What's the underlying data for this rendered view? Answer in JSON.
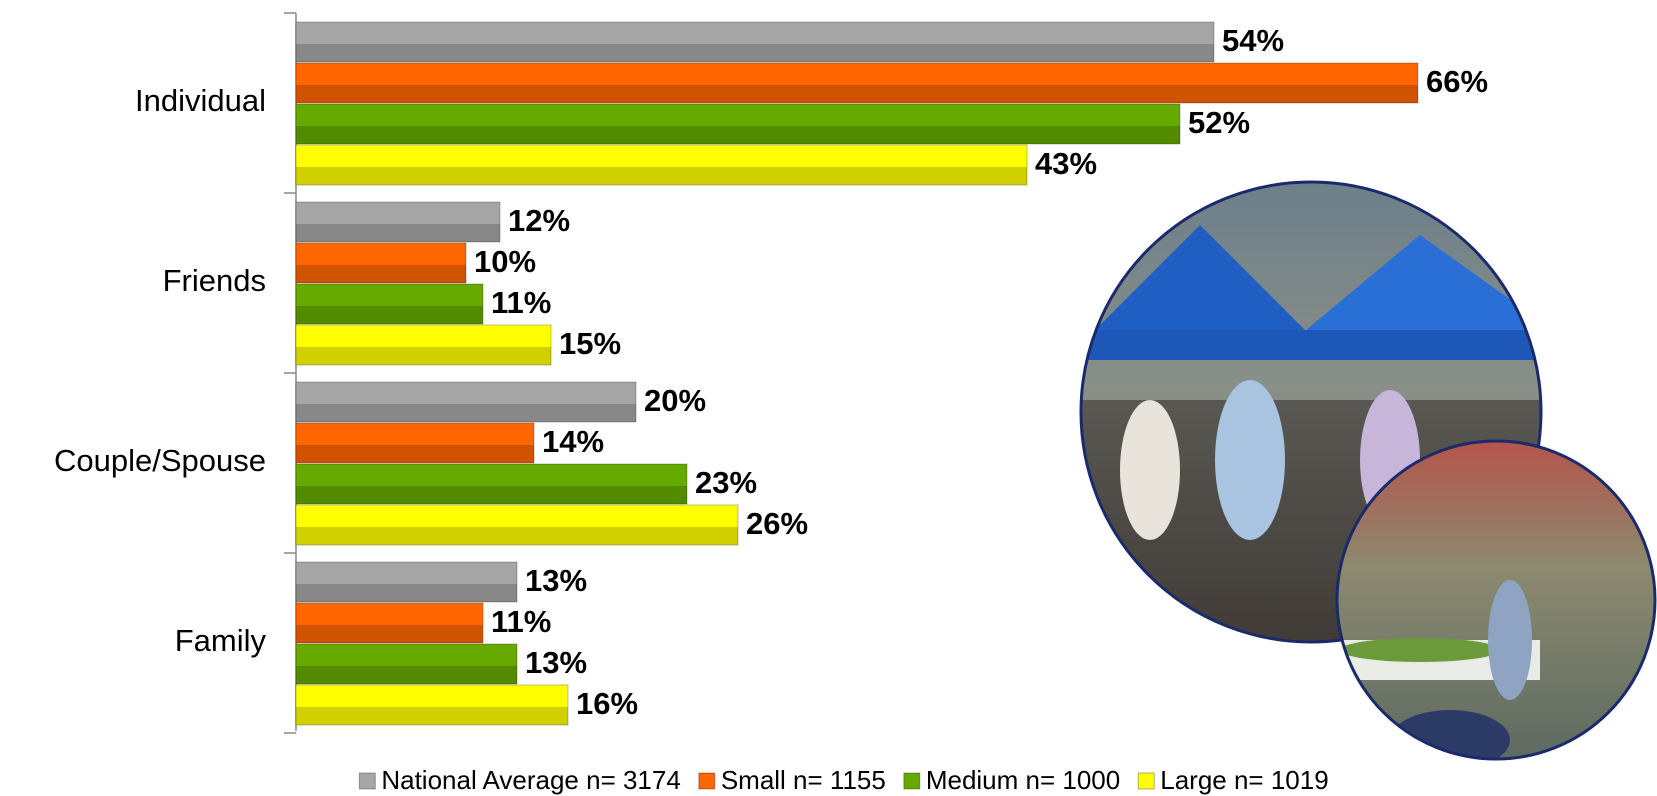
{
  "chart_data": {
    "type": "bar",
    "orientation": "horizontal",
    "categories": [
      "Individual",
      "Friends",
      "Couple/Spouse",
      "Family"
    ],
    "series": [
      {
        "name": "National Average n= 3174",
        "color": "#a6a6a6",
        "values": [
          54,
          12,
          20,
          13
        ],
        "value_labels": [
          "54%",
          "12%",
          "20%",
          "13%"
        ]
      },
      {
        "name": "Small n= 1155",
        "color": "#ff6600",
        "values": [
          66,
          10,
          14,
          11
        ],
        "value_labels": [
          "66%",
          "10%",
          "14%",
          "11%"
        ]
      },
      {
        "name": "Medium n= 1000",
        "color": "#66aa00",
        "values": [
          52,
          11,
          23,
          13
        ],
        "value_labels": [
          "52%",
          "11%",
          "23%",
          "13%"
        ]
      },
      {
        "name": "Large n= 1019",
        "color": "#ffff00",
        "values": [
          43,
          15,
          26,
          16
        ],
        "value_labels": [
          "43%",
          "15%",
          "26%",
          "16%"
        ]
      }
    ],
    "xlim": [
      0,
      80
    ],
    "legend": "bottom"
  }
}
